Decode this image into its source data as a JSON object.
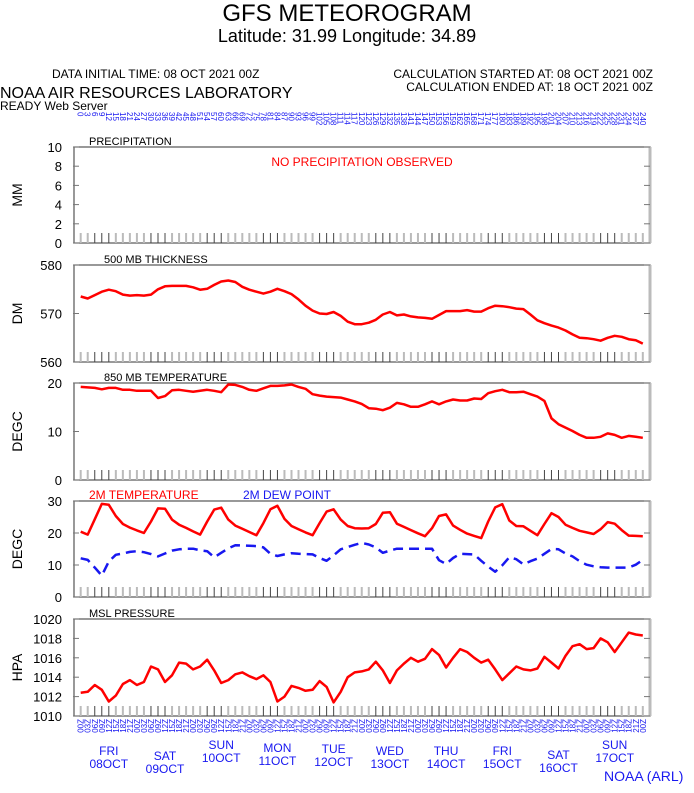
{
  "header": {
    "title": "GFS METEOROGRAM",
    "location": "Latitude: 31.99 Longitude:  34.89",
    "initial_time": "DATA INITIAL TIME: 08 OCT 2021 00Z",
    "calc_started": "CALCULATION STARTED AT: 08 OCT 2021 00Z",
    "calc_ended": "CALCULATION ENDED AT: 18 OCT 2021 00Z",
    "org": "NOAA AIR RESOURCES LABORATORY",
    "server": "READY Web Server",
    "footer": "NOAA (ARL)"
  },
  "colors": {
    "temperature": "#ff0000",
    "dew_point": "#1818f0",
    "axis_labels": "#1818f0",
    "frame": "#555555"
  },
  "top_axis": {
    "label_unit": "forecast hour",
    "hours_start": 0,
    "hours_end": 240,
    "hours_step": 3
  },
  "bottom_axis": {
    "hour_labels": [
      "00Z",
      "03Z",
      "06Z",
      "09Z",
      "12Z",
      "15Z",
      "18Z",
      "21Z"
    ],
    "days": [
      {
        "day": "FRI",
        "date": "08OCT"
      },
      {
        "day": "SAT",
        "date": "09OCT"
      },
      {
        "day": "SUN",
        "date": "10OCT"
      },
      {
        "day": "MON",
        "date": "11OCT"
      },
      {
        "day": "TUE",
        "date": "12OCT"
      },
      {
        "day": "WED",
        "date": "13OCT"
      },
      {
        "day": "THU",
        "date": "14OCT"
      },
      {
        "day": "FRI",
        "date": "15OCT"
      },
      {
        "day": "SAT",
        "date": "16OCT"
      },
      {
        "day": "SUN",
        "date": "17OCT"
      }
    ]
  },
  "chart_data": [
    {
      "type": "line",
      "title": "PRECIPITATION",
      "ylabel": "MM",
      "ylim": [
        0,
        10
      ],
      "yticks": [
        0,
        2,
        4,
        6,
        8,
        10
      ],
      "annotation": "NO PRECIPITATION OBSERVED",
      "series": []
    },
    {
      "type": "line",
      "title": "500 MB  THICKNESS",
      "ylabel": "DM",
      "ylim": [
        560,
        580
      ],
      "yticks": [
        560,
        570,
        580
      ],
      "series": [
        {
          "color": "#ff0000",
          "style": "solid",
          "values": [
            573.5,
            573.1,
            573.8,
            574.5,
            574.9,
            574.6,
            573.9,
            573.7,
            573.8,
            573.7,
            573.9,
            575.0,
            575.6,
            575.7,
            575.7,
            575.7,
            575.4,
            574.9,
            575.1,
            575.9,
            576.6,
            576.8,
            576.5,
            575.5,
            574.9,
            574.5,
            574.1,
            574.5,
            575.1,
            574.6,
            574.0,
            572.9,
            571.6,
            570.6,
            570.0,
            569.9,
            570.3,
            569.5,
            568.3,
            567.8,
            567.8,
            568.1,
            568.7,
            569.8,
            570.3,
            569.6,
            569.8,
            569.4,
            569.2,
            569.1,
            568.9,
            569.7,
            570.5,
            570.5,
            570.5,
            570.7,
            570.4,
            570.4,
            571.1,
            571.6,
            571.5,
            571.3,
            571.0,
            570.9,
            569.8,
            568.6,
            568.0,
            567.5,
            567.1,
            566.5,
            565.7,
            565.0,
            564.9,
            564.7,
            564.4,
            565.0,
            565.4,
            565.2,
            564.7,
            564.5,
            563.8
          ]
        }
      ]
    },
    {
      "type": "line",
      "title": "850 MB  TEMPERATURE",
      "ylabel": "DEGC",
      "ylim": [
        0,
        20
      ],
      "yticks": [
        0,
        10,
        20
      ],
      "series": [
        {
          "color": "#ff0000",
          "style": "solid",
          "values": [
            19.2,
            19.1,
            19.0,
            18.7,
            19.0,
            19.0,
            18.6,
            18.6,
            18.4,
            18.4,
            18.4,
            16.9,
            17.3,
            18.5,
            18.6,
            18.4,
            18.2,
            18.4,
            18.6,
            18.4,
            18.1,
            19.7,
            19.6,
            19.2,
            18.6,
            18.4,
            18.9,
            19.4,
            19.4,
            19.5,
            19.7,
            19.2,
            18.8,
            17.7,
            17.4,
            17.2,
            17.1,
            17.0,
            16.6,
            16.2,
            15.7,
            14.8,
            14.7,
            14.4,
            14.9,
            15.9,
            15.6,
            15.1,
            15.1,
            15.6,
            16.2,
            15.6,
            16.2,
            16.6,
            16.4,
            16.4,
            16.8,
            16.7,
            17.9,
            18.3,
            18.6,
            18.1,
            18.1,
            18.2,
            17.7,
            17.2,
            16.3,
            12.7,
            11.5,
            10.8,
            10.1,
            9.3,
            8.7,
            8.7,
            8.9,
            9.6,
            9.3,
            8.7,
            9.1,
            8.9,
            8.7
          ]
        }
      ]
    },
    {
      "type": "line",
      "title": "",
      "ylabel": "DEGC",
      "ylim": [
        0,
        30
      ],
      "yticks": [
        0,
        10,
        20,
        30
      ],
      "series": [
        {
          "name": "2M TEMPERATURE",
          "color": "#ff0000",
          "style": "solid",
          "values": [
            20.4,
            19.5,
            24.3,
            29.1,
            28.8,
            25.3,
            22.8,
            21.7,
            20.8,
            20.0,
            23.6,
            27.7,
            27.6,
            24.2,
            22.6,
            21.6,
            20.5,
            19.5,
            23.6,
            27.3,
            27.9,
            24.2,
            22.3,
            21.3,
            20.3,
            19.3,
            23.1,
            27.4,
            28.5,
            24.4,
            22.2,
            21.2,
            20.2,
            19.3,
            23.1,
            26.7,
            27.4,
            24.2,
            22.2,
            21.5,
            21.4,
            21.5,
            22.8,
            26.3,
            26.5,
            22.9,
            21.9,
            20.9,
            19.9,
            19.0,
            21.5,
            25.3,
            25.8,
            22.3,
            21.0,
            19.8,
            19.1,
            18.4,
            23.6,
            28.0,
            29.0,
            23.9,
            22.2,
            22.1,
            20.7,
            19.3,
            22.8,
            26.2,
            25.0,
            22.6,
            21.6,
            20.7,
            20.2,
            19.7,
            21.2,
            23.4,
            22.9,
            20.9,
            19.2,
            19.1,
            19.0
          ]
        },
        {
          "name": "2M   DEW POINT",
          "color": "#1818f0",
          "style": "dashed",
          "values": [
            12.1,
            11.6,
            9.2,
            6.7,
            11.1,
            13.2,
            13.6,
            14.1,
            14.3,
            14.0,
            13.4,
            12.7,
            13.6,
            14.5,
            14.9,
            15.1,
            15.1,
            14.6,
            14.3,
            12.4,
            13.8,
            15.2,
            16.2,
            16.1,
            16.0,
            15.9,
            15.5,
            13.5,
            12.8,
            13.3,
            13.7,
            13.5,
            13.4,
            13.3,
            12.2,
            11.3,
            13.0,
            14.9,
            15.6,
            16.3,
            16.9,
            16.4,
            15.5,
            13.8,
            14.5,
            15.1,
            15.1,
            15.1,
            15.1,
            15.1,
            15.1,
            11.5,
            10.3,
            12.2,
            13.5,
            13.4,
            13.3,
            11.3,
            9.5,
            7.9,
            9.9,
            12.4,
            11.8,
            10.2,
            11.2,
            12.0,
            13.5,
            15.0,
            14.9,
            13.6,
            12.7,
            11.2,
            10.1,
            9.6,
            9.3,
            9.2,
            9.2,
            9.2,
            9.2,
            10.1,
            11.6
          ]
        }
      ]
    },
    {
      "type": "line",
      "title": "MSL PRESSURE",
      "ylabel": "HPA",
      "ylim": [
        1010,
        1020
      ],
      "yticks": [
        1010,
        1012,
        1014,
        1016,
        1018,
        1020
      ],
      "series": [
        {
          "color": "#ff0000",
          "style": "solid",
          "values": [
            1012.4,
            1012.5,
            1013.2,
            1012.7,
            1011.5,
            1012.1,
            1013.3,
            1013.7,
            1013.2,
            1013.5,
            1015.1,
            1014.8,
            1013.5,
            1014.2,
            1015.5,
            1015.4,
            1014.8,
            1015.1,
            1015.8,
            1014.7,
            1013.4,
            1013.7,
            1014.3,
            1014.5,
            1014.1,
            1013.8,
            1014.2,
            1013.5,
            1011.5,
            1012.0,
            1013.1,
            1012.9,
            1012.6,
            1012.7,
            1013.6,
            1013.0,
            1011.4,
            1012.5,
            1014.0,
            1014.5,
            1014.6,
            1014.8,
            1015.6,
            1014.7,
            1013.4,
            1014.7,
            1015.4,
            1016.0,
            1015.6,
            1015.9,
            1016.9,
            1016.3,
            1015.0,
            1016.0,
            1016.9,
            1016.6,
            1016.0,
            1015.5,
            1015.8,
            1014.8,
            1013.7,
            1014.4,
            1015.1,
            1014.8,
            1014.7,
            1014.9,
            1016.1,
            1015.5,
            1014.9,
            1016.2,
            1017.2,
            1017.4,
            1016.9,
            1017.0,
            1018.0,
            1017.6,
            1016.6,
            1017.6,
            1018.6,
            1018.4,
            1018.3
          ]
        }
      ]
    }
  ]
}
